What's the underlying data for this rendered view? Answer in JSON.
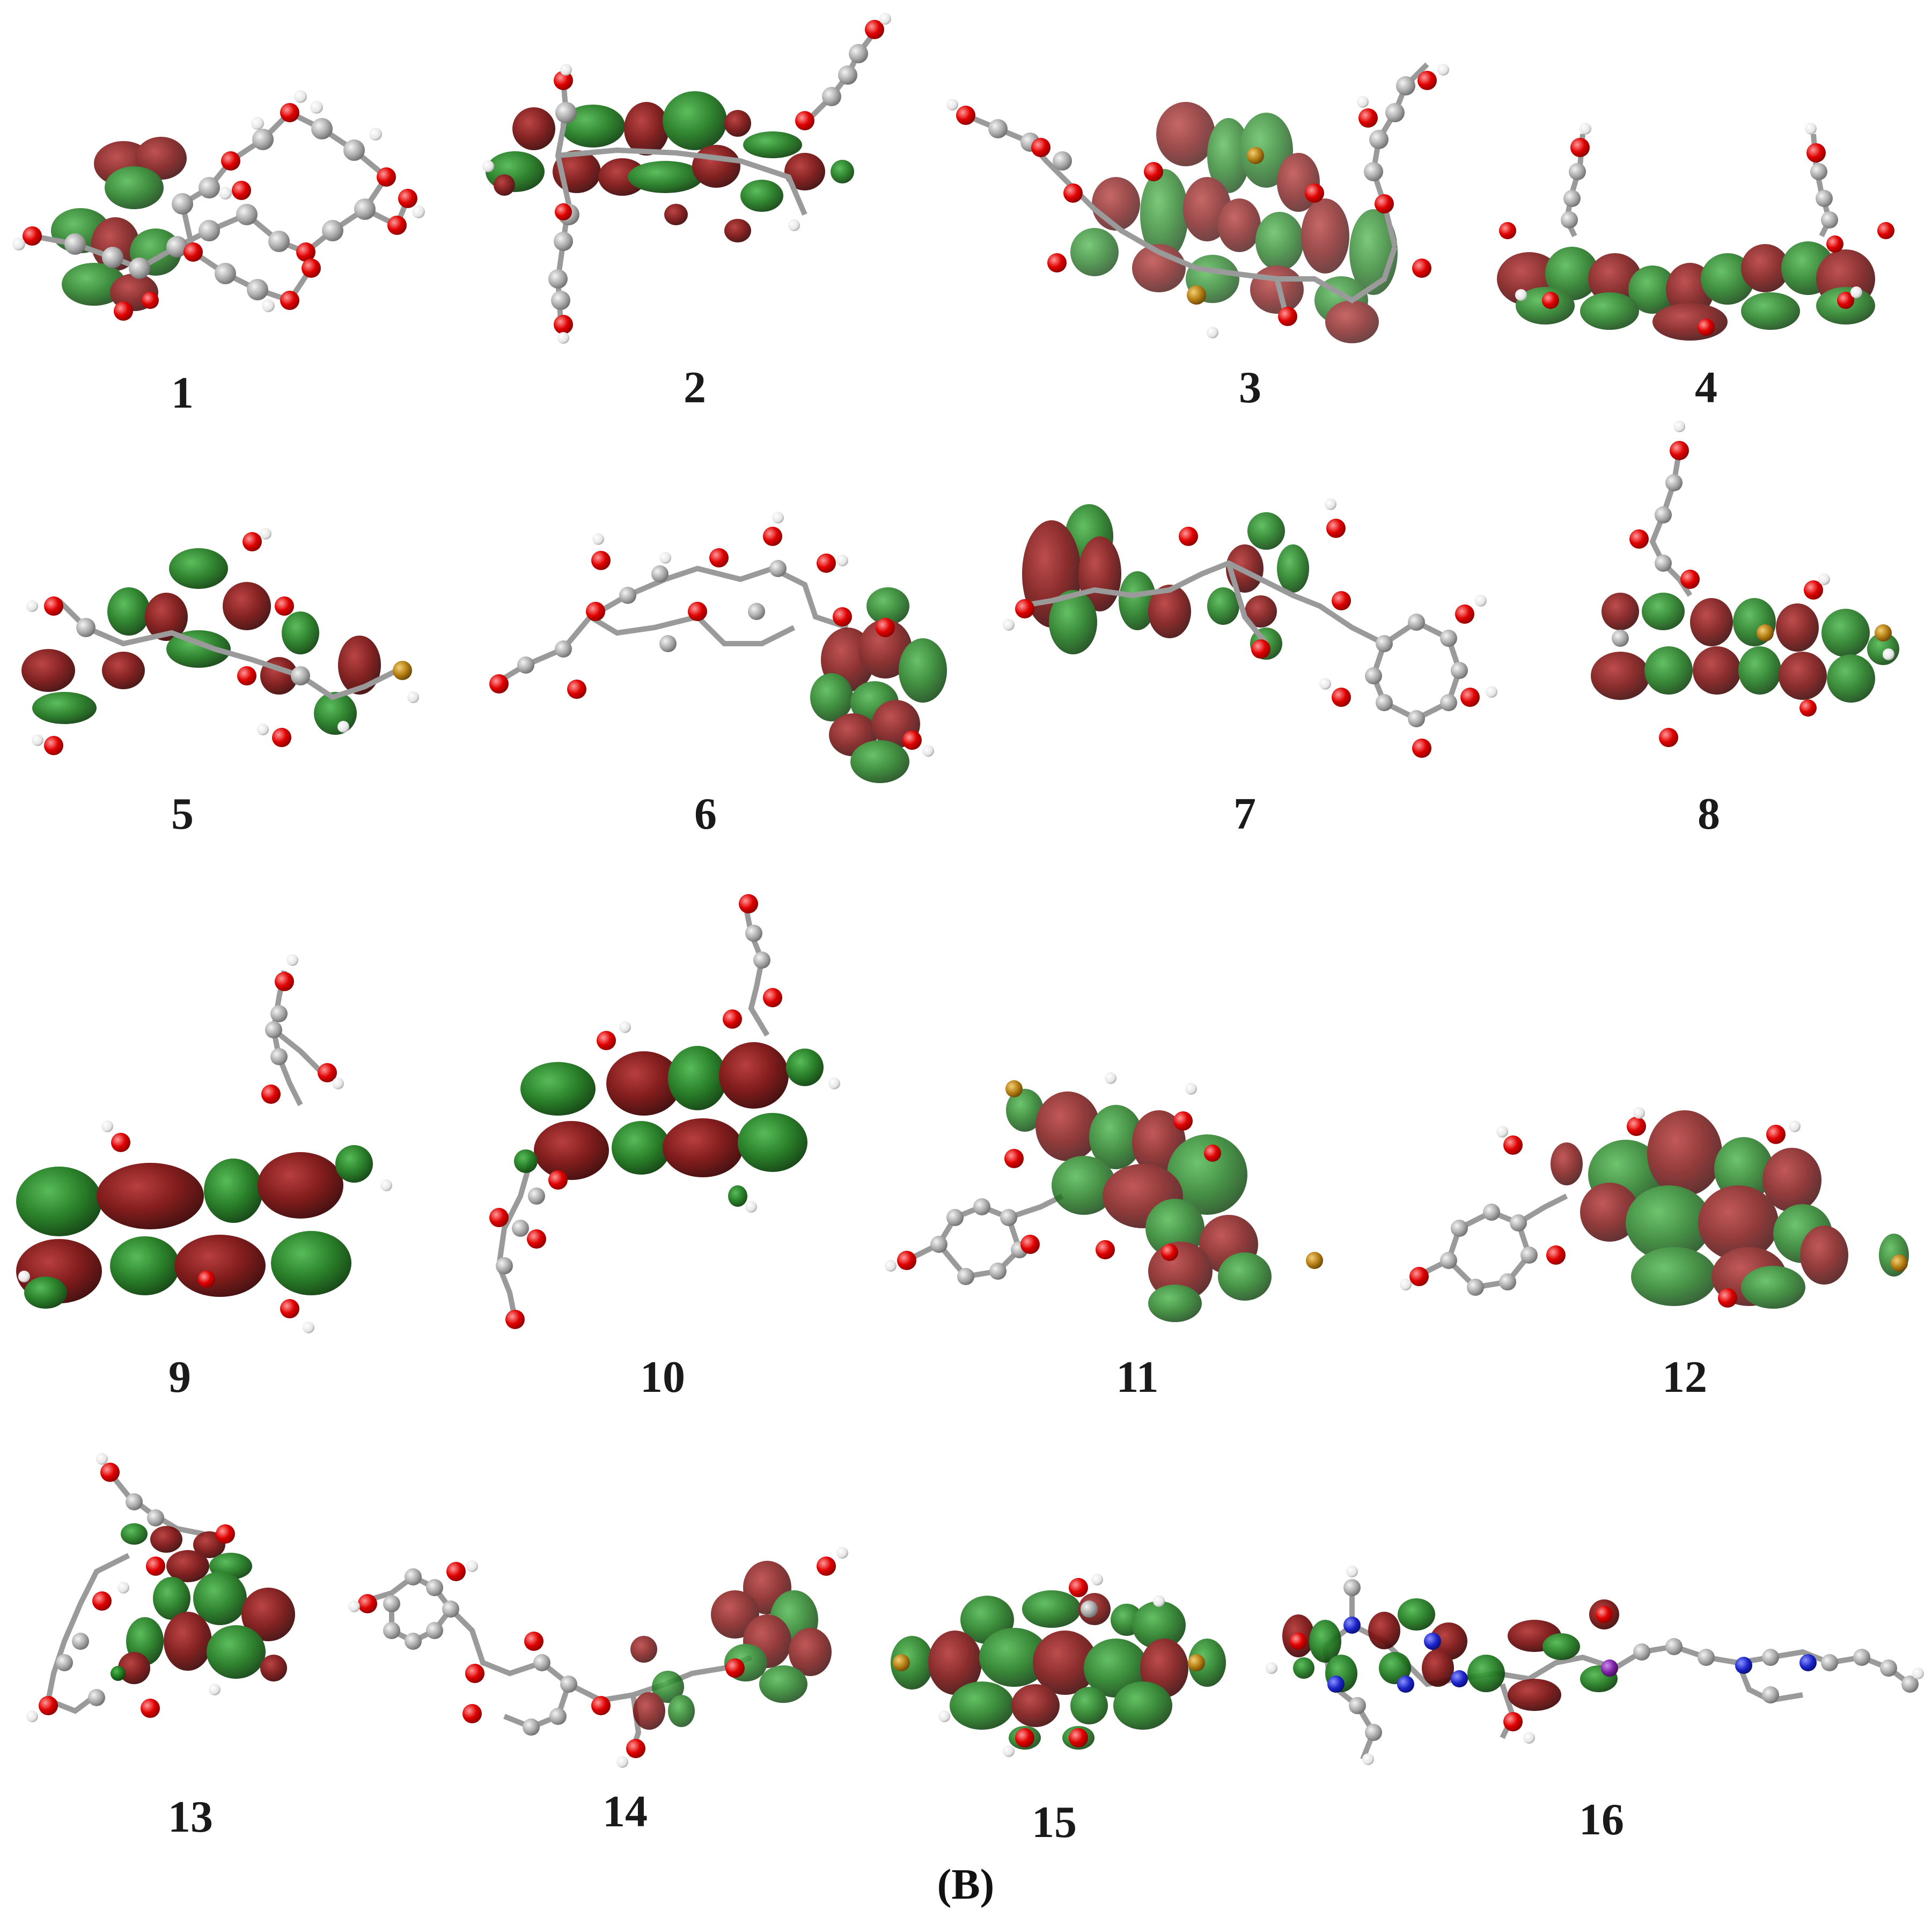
{
  "panel": {
    "caption": "(B)"
  },
  "molecules": [
    {
      "label": "1"
    },
    {
      "label": "2"
    },
    {
      "label": "3"
    },
    {
      "label": "4"
    },
    {
      "label": "5"
    },
    {
      "label": "6"
    },
    {
      "label": "7"
    },
    {
      "label": "8"
    },
    {
      "label": "9"
    },
    {
      "label": "10"
    },
    {
      "label": "11"
    },
    {
      "label": "12"
    },
    {
      "label": "13"
    },
    {
      "label": "14"
    },
    {
      "label": "15"
    },
    {
      "label": "16"
    }
  ],
  "colors": {
    "lobe_positive": "#1f7a1f",
    "lobe_negative": "#7a1010",
    "carbon": "#a9a9a9",
    "oxygen": "#e00000",
    "hydrogen": "#f2f2f2",
    "nitrogen": "#1a22c8",
    "sulfur": "#b07a10",
    "phosphorus": "#7a1fa0",
    "bond": "#9a9a9a"
  }
}
